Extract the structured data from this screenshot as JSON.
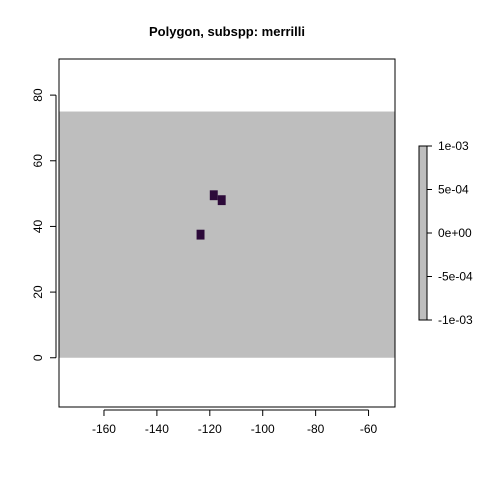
{
  "chart_data": {
    "type": "heatmap",
    "title": "Polygon, subspp: merrilli",
    "xlabel": "",
    "ylabel": "",
    "xlim": [
      -177,
      -50
    ],
    "ylim": [
      -15,
      91
    ],
    "x_ticks": [
      -160,
      -140,
      -120,
      -100,
      -80,
      -60
    ],
    "x_tick_labels": [
      "-160",
      "-140",
      "-120",
      "-100",
      "-80",
      "-60"
    ],
    "y_ticks": [
      0,
      20,
      40,
      60,
      80
    ],
    "y_tick_labels": [
      "0",
      "20",
      "40",
      "60",
      "80"
    ],
    "grid": false,
    "background_extent": {
      "x": [
        -177,
        -50
      ],
      "y": [
        0,
        75
      ]
    },
    "cells": [
      {
        "x": [
          -120,
          -117
        ],
        "y": [
          48,
          51
        ],
        "value": 1
      },
      {
        "x": [
          -117,
          -114
        ],
        "y": [
          46.5,
          49.5
        ],
        "value": 1
      },
      {
        "x": [
          -125,
          -122
        ],
        "y": [
          36,
          39
        ],
        "value": 1
      }
    ],
    "colorbar": {
      "position": "right",
      "range": [
        -0.001,
        0.001
      ],
      "ticks": [
        0.001,
        0.0005,
        0,
        -0.0005,
        -0.001
      ],
      "tick_labels": [
        "1e-03",
        "5e-04",
        "0e+00",
        "-5e-04",
        "-1e-03"
      ]
    },
    "colors": {
      "background": "#bebebe",
      "cell": "#2d0a3a",
      "axis": "#000000",
      "colorbar_fill": "#bebebe"
    }
  }
}
